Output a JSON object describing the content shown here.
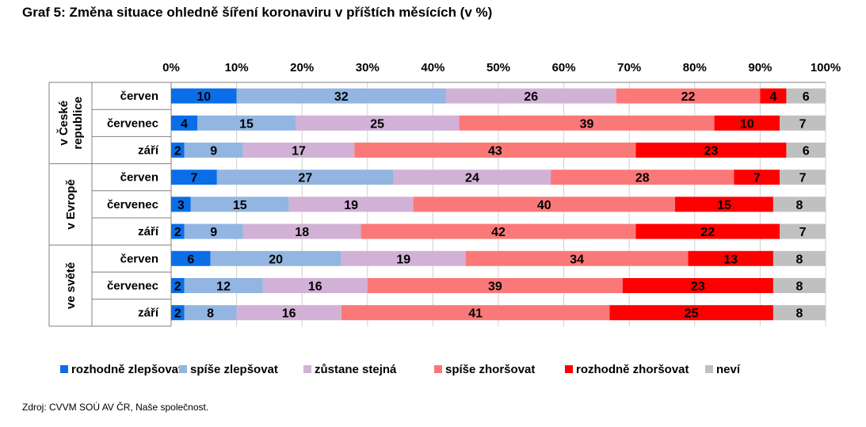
{
  "title": "Graf 5: Změna situace ohledně šíření koronaviru v příštích měsících (v %)",
  "source": "Zdroj: CVVM SOÚ AV ČR, Naše společnost.",
  "chart_data": {
    "type": "bar",
    "orientation": "horizontal",
    "stacked": true,
    "percent_axis_ticks": [
      "0%",
      "10%",
      "20%",
      "30%",
      "40%",
      "50%",
      "60%",
      "70%",
      "80%",
      "90%",
      "100%"
    ],
    "xlim": [
      0,
      100
    ],
    "groups": [
      {
        "label": "v České republice",
        "label_lines": [
          "v České",
          "republice"
        ],
        "rows": [
          {
            "category": "červen",
            "values": [
              10,
              32,
              26,
              22,
              4,
              6
            ]
          },
          {
            "category": "červenec",
            "values": [
              4,
              15,
              25,
              39,
              10,
              7
            ]
          },
          {
            "category": "září",
            "values": [
              2,
              9,
              17,
              43,
              23,
              6
            ]
          }
        ]
      },
      {
        "label": "v Evropě",
        "label_lines": [
          "v Evropě"
        ],
        "rows": [
          {
            "category": "červen",
            "values": [
              7,
              27,
              24,
              28,
              7,
              7
            ]
          },
          {
            "category": "červenec",
            "values": [
              3,
              15,
              19,
              40,
              15,
              8
            ]
          },
          {
            "category": "září",
            "values": [
              2,
              9,
              18,
              42,
              22,
              7
            ]
          }
        ]
      },
      {
        "label": "ve světě",
        "label_lines": [
          "ve světě"
        ],
        "rows": [
          {
            "category": "červen",
            "values": [
              6,
              20,
              19,
              34,
              13,
              8
            ]
          },
          {
            "category": "červenec",
            "values": [
              2,
              12,
              16,
              39,
              23,
              8
            ]
          },
          {
            "category": "září",
            "values": [
              2,
              8,
              16,
              41,
              25,
              8
            ]
          }
        ]
      }
    ],
    "series": [
      {
        "name": "rozhodně zlepšovat",
        "color": "#0a6ee8"
      },
      {
        "name": "spíše zlepšovat",
        "color": "#93b5e1"
      },
      {
        "name": "zůstane stejná",
        "color": "#d2b1d6"
      },
      {
        "name": "spíše zhoršovat",
        "color": "#fb7878"
      },
      {
        "name": "rozhodně zhoršovat",
        "color": "#ff0000"
      },
      {
        "name": "neví",
        "color": "#c0c0c0"
      }
    ],
    "legend_position": "bottom",
    "grid": true
  }
}
